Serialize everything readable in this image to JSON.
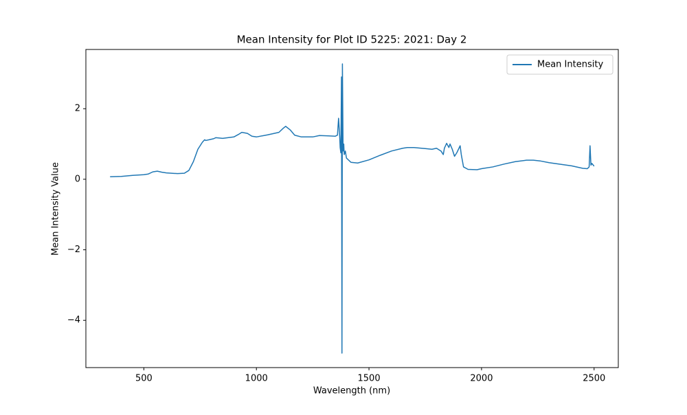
{
  "chart_data": {
    "type": "line",
    "title": "Mean Intensity for Plot ID 5225: 2021: Day 2",
    "x_label": "Wavelength (nm)",
    "y_label": "Mean Intensity Value",
    "xlim": [
      242.5,
      2607.5
    ],
    "ylim": [
      -5.34,
      3.68
    ],
    "xticks": [
      500,
      1000,
      1500,
      2000,
      2500
    ],
    "yticks": [
      {
        "value": -4,
        "label": "−4"
      },
      {
        "value": -2,
        "label": "−2"
      },
      0,
      2
    ],
    "legend": "upper right",
    "x": [
      350,
      400,
      450,
      500,
      520,
      540,
      560,
      580,
      600,
      650,
      680,
      700,
      720,
      740,
      760,
      770,
      775,
      790,
      810,
      820,
      850,
      900,
      920,
      935,
      960,
      980,
      1000,
      1050,
      1100,
      1120,
      1130,
      1150,
      1170,
      1200,
      1250,
      1280,
      1320,
      1350,
      1360,
      1365,
      1370,
      1372,
      1375,
      1378,
      1380,
      1382,
      1385,
      1388,
      1390,
      1395,
      1400,
      1420,
      1450,
      1500,
      1550,
      1600,
      1650,
      1670,
      1700,
      1750,
      1780,
      1800,
      1820,
      1830,
      1835,
      1845,
      1855,
      1860,
      1870,
      1880,
      1890,
      1905,
      1910,
      1920,
      1940,
      1980,
      2000,
      2050,
      2100,
      2150,
      2200,
      2230,
      2260,
      2300,
      2400,
      2450,
      2470,
      2478,
      2482,
      2486,
      2490,
      2500
    ],
    "series": [
      {
        "name": "Mean Intensity",
        "color": "#1f77b4",
        "values": [
          0.07,
          0.08,
          0.11,
          0.13,
          0.15,
          0.21,
          0.23,
          0.2,
          0.18,
          0.16,
          0.17,
          0.25,
          0.5,
          0.85,
          1.05,
          1.12,
          1.1,
          1.12,
          1.15,
          1.18,
          1.16,
          1.2,
          1.27,
          1.33,
          1.3,
          1.22,
          1.2,
          1.26,
          1.33,
          1.45,
          1.5,
          1.4,
          1.25,
          1.2,
          1.2,
          1.24,
          1.23,
          1.22,
          1.25,
          1.73,
          1.2,
          0.9,
          0.75,
          2.9,
          -4.93,
          3.27,
          0.8,
          1.0,
          0.7,
          0.8,
          0.6,
          0.48,
          0.46,
          0.55,
          0.68,
          0.8,
          0.88,
          0.9,
          0.9,
          0.87,
          0.85,
          0.88,
          0.8,
          0.7,
          0.88,
          1.02,
          0.9,
          1.0,
          0.85,
          0.65,
          0.75,
          0.95,
          0.7,
          0.35,
          0.28,
          0.27,
          0.3,
          0.35,
          0.43,
          0.5,
          0.54,
          0.54,
          0.52,
          0.47,
          0.38,
          0.31,
          0.3,
          0.35,
          0.95,
          0.4,
          0.45,
          0.37
        ]
      }
    ]
  }
}
